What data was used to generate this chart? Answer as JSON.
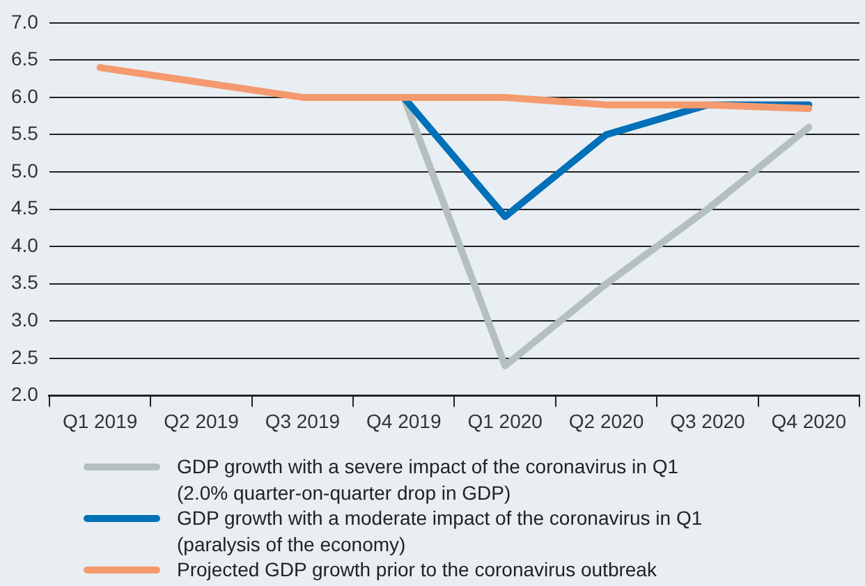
{
  "chart_data": {
    "type": "line",
    "categories": [
      "Q1 2019",
      "Q2 2019",
      "Q3 2019",
      "Q4 2019",
      "Q1 2020",
      "Q2 2020",
      "Q3 2020",
      "Q4 2020"
    ],
    "series": [
      {
        "name": "GDP growth with a severe impact of the coronavirus in Q1 (2.0% quarter-on-quarter drop in GDP)",
        "color": "#b4bfc0",
        "values": [
          null,
          null,
          null,
          6.0,
          2.4,
          3.5,
          4.5,
          5.6
        ]
      },
      {
        "name": "GDP growth with a moderate impact of the coronavirus in Q1 (paralysis of the economy)",
        "color": "#0070b8",
        "values": [
          null,
          null,
          null,
          6.0,
          4.4,
          5.5,
          5.9,
          5.9
        ]
      },
      {
        "name": "Projected GDP growth prior to the coronavirus outbreak",
        "color": "#f59a6e",
        "values": [
          6.4,
          6.2,
          6.0,
          6.0,
          6.0,
          5.9,
          5.9,
          5.85
        ]
      }
    ],
    "ylim": [
      2.0,
      7.0
    ],
    "yticks": [
      {
        "value": 2,
        "label": "2.0"
      },
      {
        "value": 2.5,
        "label": "2.5"
      },
      {
        "value": 3,
        "label": "3.0"
      },
      {
        "value": 3.5,
        "label": "3.5"
      },
      {
        "value": 4,
        "label": "4.0"
      },
      {
        "value": 4.5,
        "label": "4.5"
      },
      {
        "value": 5,
        "label": "5.0"
      },
      {
        "value": 5.5,
        "label": "5.5"
      },
      {
        "value": 6,
        "label": "6.0"
      },
      {
        "value": 6.5,
        "label": "6.5"
      },
      {
        "value": 7,
        "label": "7.0"
      }
    ],
    "grid": "y",
    "legend": "bottom",
    "marker": "none",
    "line_style": "solid"
  }
}
